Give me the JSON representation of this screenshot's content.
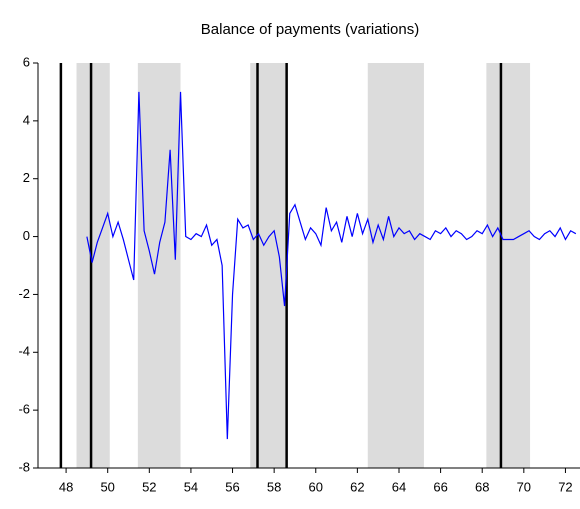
{
  "chart_data": {
    "type": "line",
    "title": "Balance of payments (variations)",
    "x": [
      49.0,
      49.25,
      49.5,
      49.75,
      50.0,
      50.25,
      50.5,
      50.75,
      51.0,
      51.25,
      51.5,
      51.75,
      52.0,
      52.25,
      52.5,
      52.75,
      53.0,
      53.25,
      53.5,
      53.75,
      54.0,
      54.25,
      54.5,
      54.75,
      55.0,
      55.25,
      55.5,
      55.75,
      56.0,
      56.25,
      56.5,
      56.75,
      57.0,
      57.25,
      57.5,
      57.75,
      58.0,
      58.25,
      58.5,
      58.75,
      59.0,
      59.25,
      59.5,
      59.75,
      60.0,
      60.25,
      60.5,
      60.75,
      61.0,
      61.25,
      61.5,
      61.75,
      62.0,
      62.25,
      62.5,
      62.75,
      63.0,
      63.25,
      63.5,
      63.75,
      64.0,
      64.25,
      64.5,
      64.75,
      65.0,
      65.25,
      65.5,
      65.75,
      66.0,
      66.25,
      66.5,
      66.75,
      67.0,
      67.25,
      67.5,
      67.75,
      68.0,
      68.25,
      68.5,
      68.75,
      69.0,
      69.25,
      69.5,
      69.75,
      70.0,
      70.25,
      70.5,
      70.75,
      71.0,
      71.25,
      71.5,
      71.75,
      72.0,
      72.25,
      72.5
    ],
    "series": [
      {
        "color": "#0000ff",
        "values": [
          0.0,
          -0.9,
          -0.2,
          0.3,
          0.8,
          0.0,
          0.5,
          -0.1,
          -0.8,
          -1.5,
          5.0,
          0.2,
          -0.5,
          -1.3,
          -0.2,
          0.5,
          3.0,
          -0.8,
          5.0,
          0.0,
          -0.1,
          0.1,
          0.0,
          0.4,
          -0.3,
          -0.1,
          -1.0,
          -7.0,
          -2.0,
          0.6,
          0.3,
          0.4,
          -0.1,
          0.1,
          -0.3,
          0.0,
          0.2,
          -0.7,
          -2.4,
          0.8,
          1.1,
          0.5,
          -0.1,
          0.3,
          0.1,
          -0.3,
          1.0,
          0.2,
          0.5,
          -0.2,
          0.7,
          0.0,
          0.8,
          0.1,
          0.6,
          -0.2,
          0.4,
          -0.1,
          0.7,
          0.0,
          0.3,
          0.1,
          0.2,
          -0.1,
          0.1,
          0.0,
          -0.1,
          0.2,
          0.1,
          0.3,
          0.0,
          0.2,
          0.1,
          -0.1,
          0.0,
          0.2,
          0.1,
          0.4,
          0.0,
          0.3,
          -0.1,
          -0.1,
          -0.1,
          0.0,
          0.1,
          0.2,
          0.0,
          -0.1,
          0.1,
          0.2,
          0.0,
          0.3,
          -0.1,
          0.2,
          0.1
        ]
      }
    ],
    "xlim": [
      46.65,
      72.7
    ],
    "ylim": [
      -8,
      6
    ],
    "xticks": [
      48,
      50,
      52,
      54,
      56,
      58,
      60,
      62,
      64,
      66,
      68,
      70,
      72
    ],
    "yticks": [
      -8,
      -6,
      -4,
      -2,
      0,
      2,
      4,
      6
    ],
    "shaded": [
      [
        48.5,
        50.1
      ],
      [
        51.45,
        53.5
      ],
      [
        56.85,
        58.6
      ],
      [
        62.5,
        65.2
      ],
      [
        68.2,
        70.3
      ]
    ],
    "vlines": [
      47.75,
      49.2,
      57.2,
      58.6,
      68.9
    ]
  }
}
